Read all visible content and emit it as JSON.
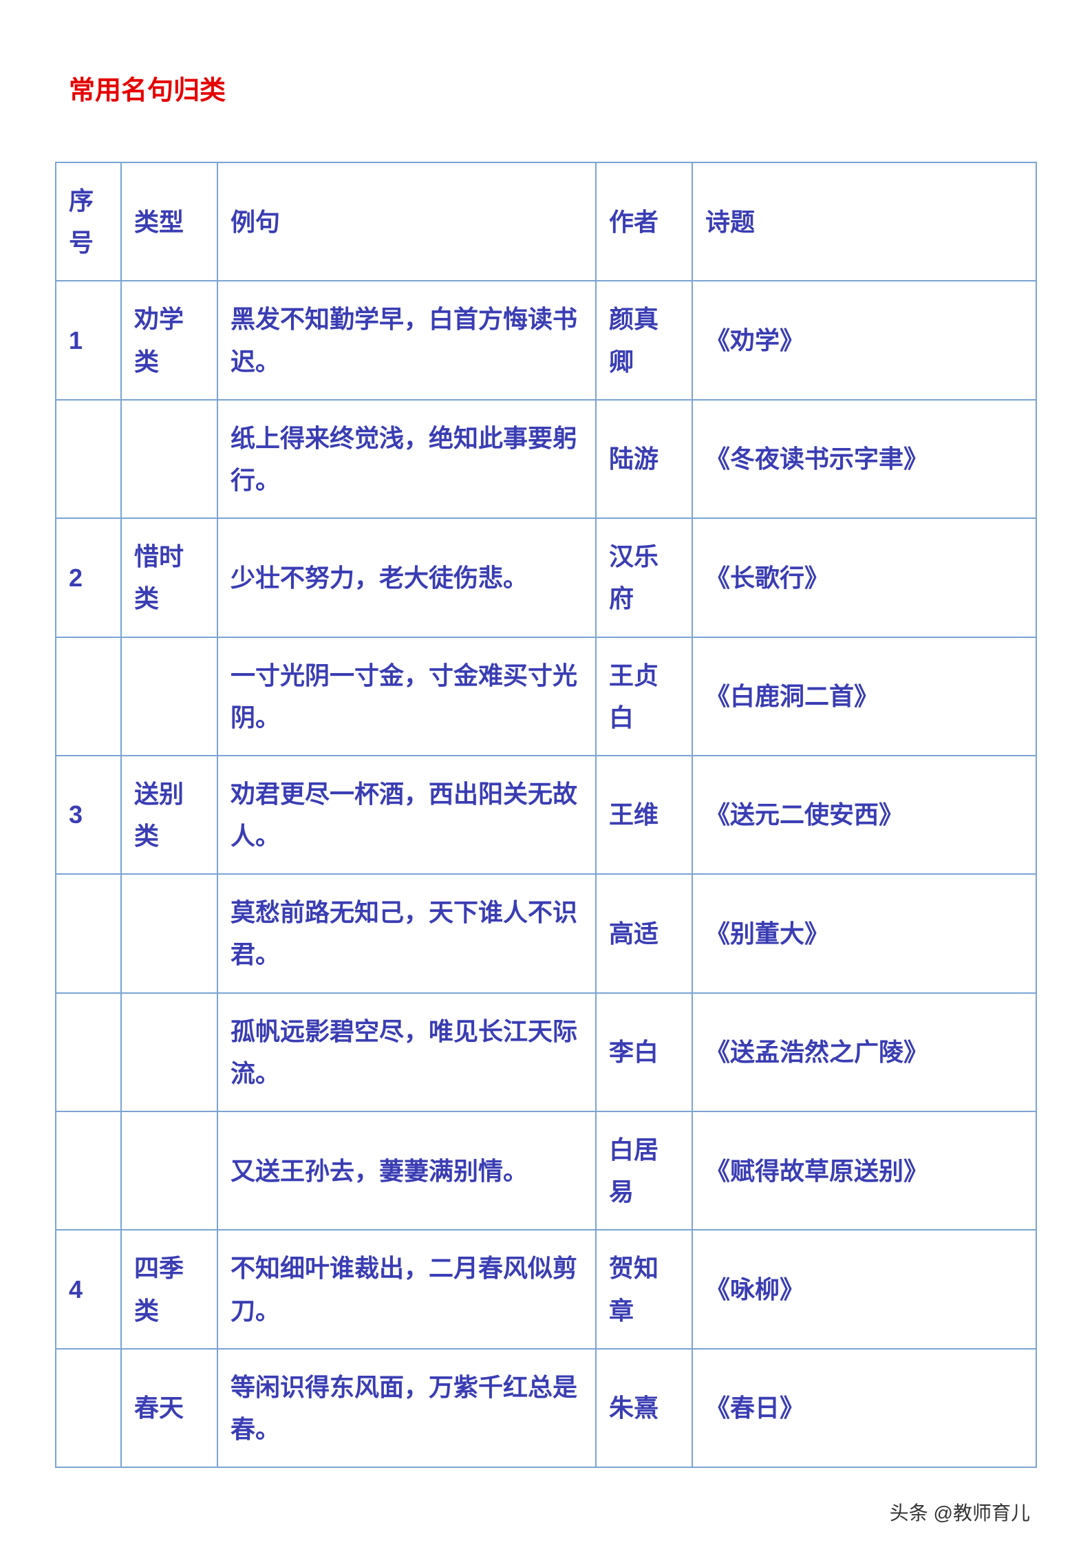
{
  "page_title": "常用名句归类",
  "table": {
    "header_color": "#3a3db3",
    "cell_color": "#3a3db3",
    "border_color": "#7aa3d4",
    "title_color": "#e60000",
    "background_color": "#ffffff",
    "font_size_title": 38,
    "font_size_cell": 36,
    "columns": [
      "序号",
      "类型",
      "例句",
      "作者",
      "诗题"
    ],
    "rows": [
      {
        "num": "1",
        "type": "劝学类",
        "quote": "黑发不知勤学早，白首方悔读书迟。",
        "author": "颜真卿",
        "title": "《劝学》"
      },
      {
        "num": "",
        "type": "",
        "quote": "纸上得来终觉浅，绝知此事要躬行。",
        "author": "陆游",
        "title": "《冬夜读书示字聿》"
      },
      {
        "num": "2",
        "type": "惜时类",
        "quote": "少壮不努力，老大徒伤悲。",
        "author": "汉乐府",
        "title": "《长歌行》"
      },
      {
        "num": "",
        "type": "",
        "quote": "一寸光阴一寸金，寸金难买寸光阴。",
        "author": "王贞白",
        "title": "《白鹿洞二首》"
      },
      {
        "num": "3",
        "type": "送别类",
        "quote": "劝君更尽一杯酒，西出阳关无故人。",
        "author": "王维",
        "title": "《送元二使安西》"
      },
      {
        "num": "",
        "type": "",
        "quote": "莫愁前路无知己，天下谁人不识君。",
        "author": "高适",
        "title": "《别董大》"
      },
      {
        "num": "",
        "type": "",
        "quote": "孤帆远影碧空尽，唯见长江天际流。",
        "author": "李白",
        "title": "《送孟浩然之广陵》"
      },
      {
        "num": "",
        "type": "",
        "quote": "又送王孙去，萋萋满别情。",
        "author": "白居易",
        "title": "《赋得故草原送别》"
      },
      {
        "num": "4",
        "type": "四季类",
        "quote": "不知细叶谁裁出，二月春风似剪刀。",
        "author": "贺知章",
        "title": "《咏柳》"
      },
      {
        "num": "",
        "type": "春天",
        "quote": "等闲识得东风面，万紫千红总是春。",
        "author": "朱熹",
        "title": "《春日》"
      }
    ]
  },
  "watermark": "头条 @教师育儿"
}
